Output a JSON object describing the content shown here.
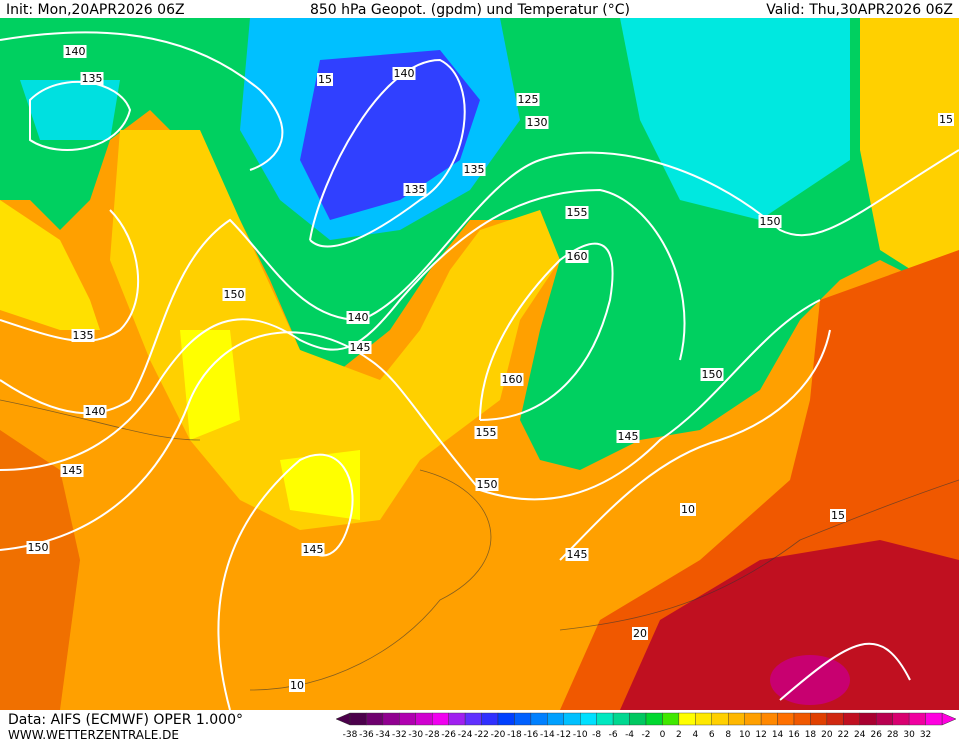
{
  "header": {
    "init": "Init: Mon,20APR2026 06Z",
    "title": "850 hPa Geopot. (gpdm) und Temperatur (°C)",
    "valid": "Valid: Thu,30APR2026 06Z"
  },
  "footer": {
    "data": "Data: AIFS (ECMWF) OPER 1.000°",
    "site": "WWW.WETTERZENTRALE.DE"
  },
  "contour_labels": [
    140,
    135,
    15,
    140,
    125,
    130,
    135,
    135,
    155,
    150,
    160,
    150,
    140,
    145,
    135,
    160,
    150,
    140,
    155,
    145,
    145,
    150,
    10,
    15,
    145,
    150,
    145,
    20,
    10,
    15
  ],
  "colorbar": {
    "labels": [
      -38,
      -36,
      -34,
      -32,
      -30,
      -28,
      -26,
      -24,
      -22,
      -20,
      -18,
      -16,
      -14,
      -12,
      -10,
      -8,
      -6,
      -4,
      -2,
      0,
      2,
      4,
      6,
      8,
      10,
      12,
      14,
      16,
      18,
      20,
      22,
      24,
      26,
      28,
      30,
      32
    ],
    "colors": [
      "#4b004b",
      "#6e006e",
      "#900090",
      "#b000b0",
      "#d000d0",
      "#f000f0",
      "#a020f0",
      "#6030ff",
      "#3030ff",
      "#0040ff",
      "#0060ff",
      "#0080ff",
      "#00a0ff",
      "#00c0ff",
      "#00e0ff",
      "#00e8c0",
      "#00d890",
      "#00c860",
      "#00d830",
      "#40e800",
      "#ffff00",
      "#ffe800",
      "#ffd000",
      "#ffb800",
      "#ffa000",
      "#ff8800",
      "#ff7000",
      "#f05800",
      "#e04000",
      "#d02810",
      "#c01020",
      "#a80030",
      "#b80050",
      "#d80070",
      "#f000a0",
      "#ff00e0"
    ]
  }
}
